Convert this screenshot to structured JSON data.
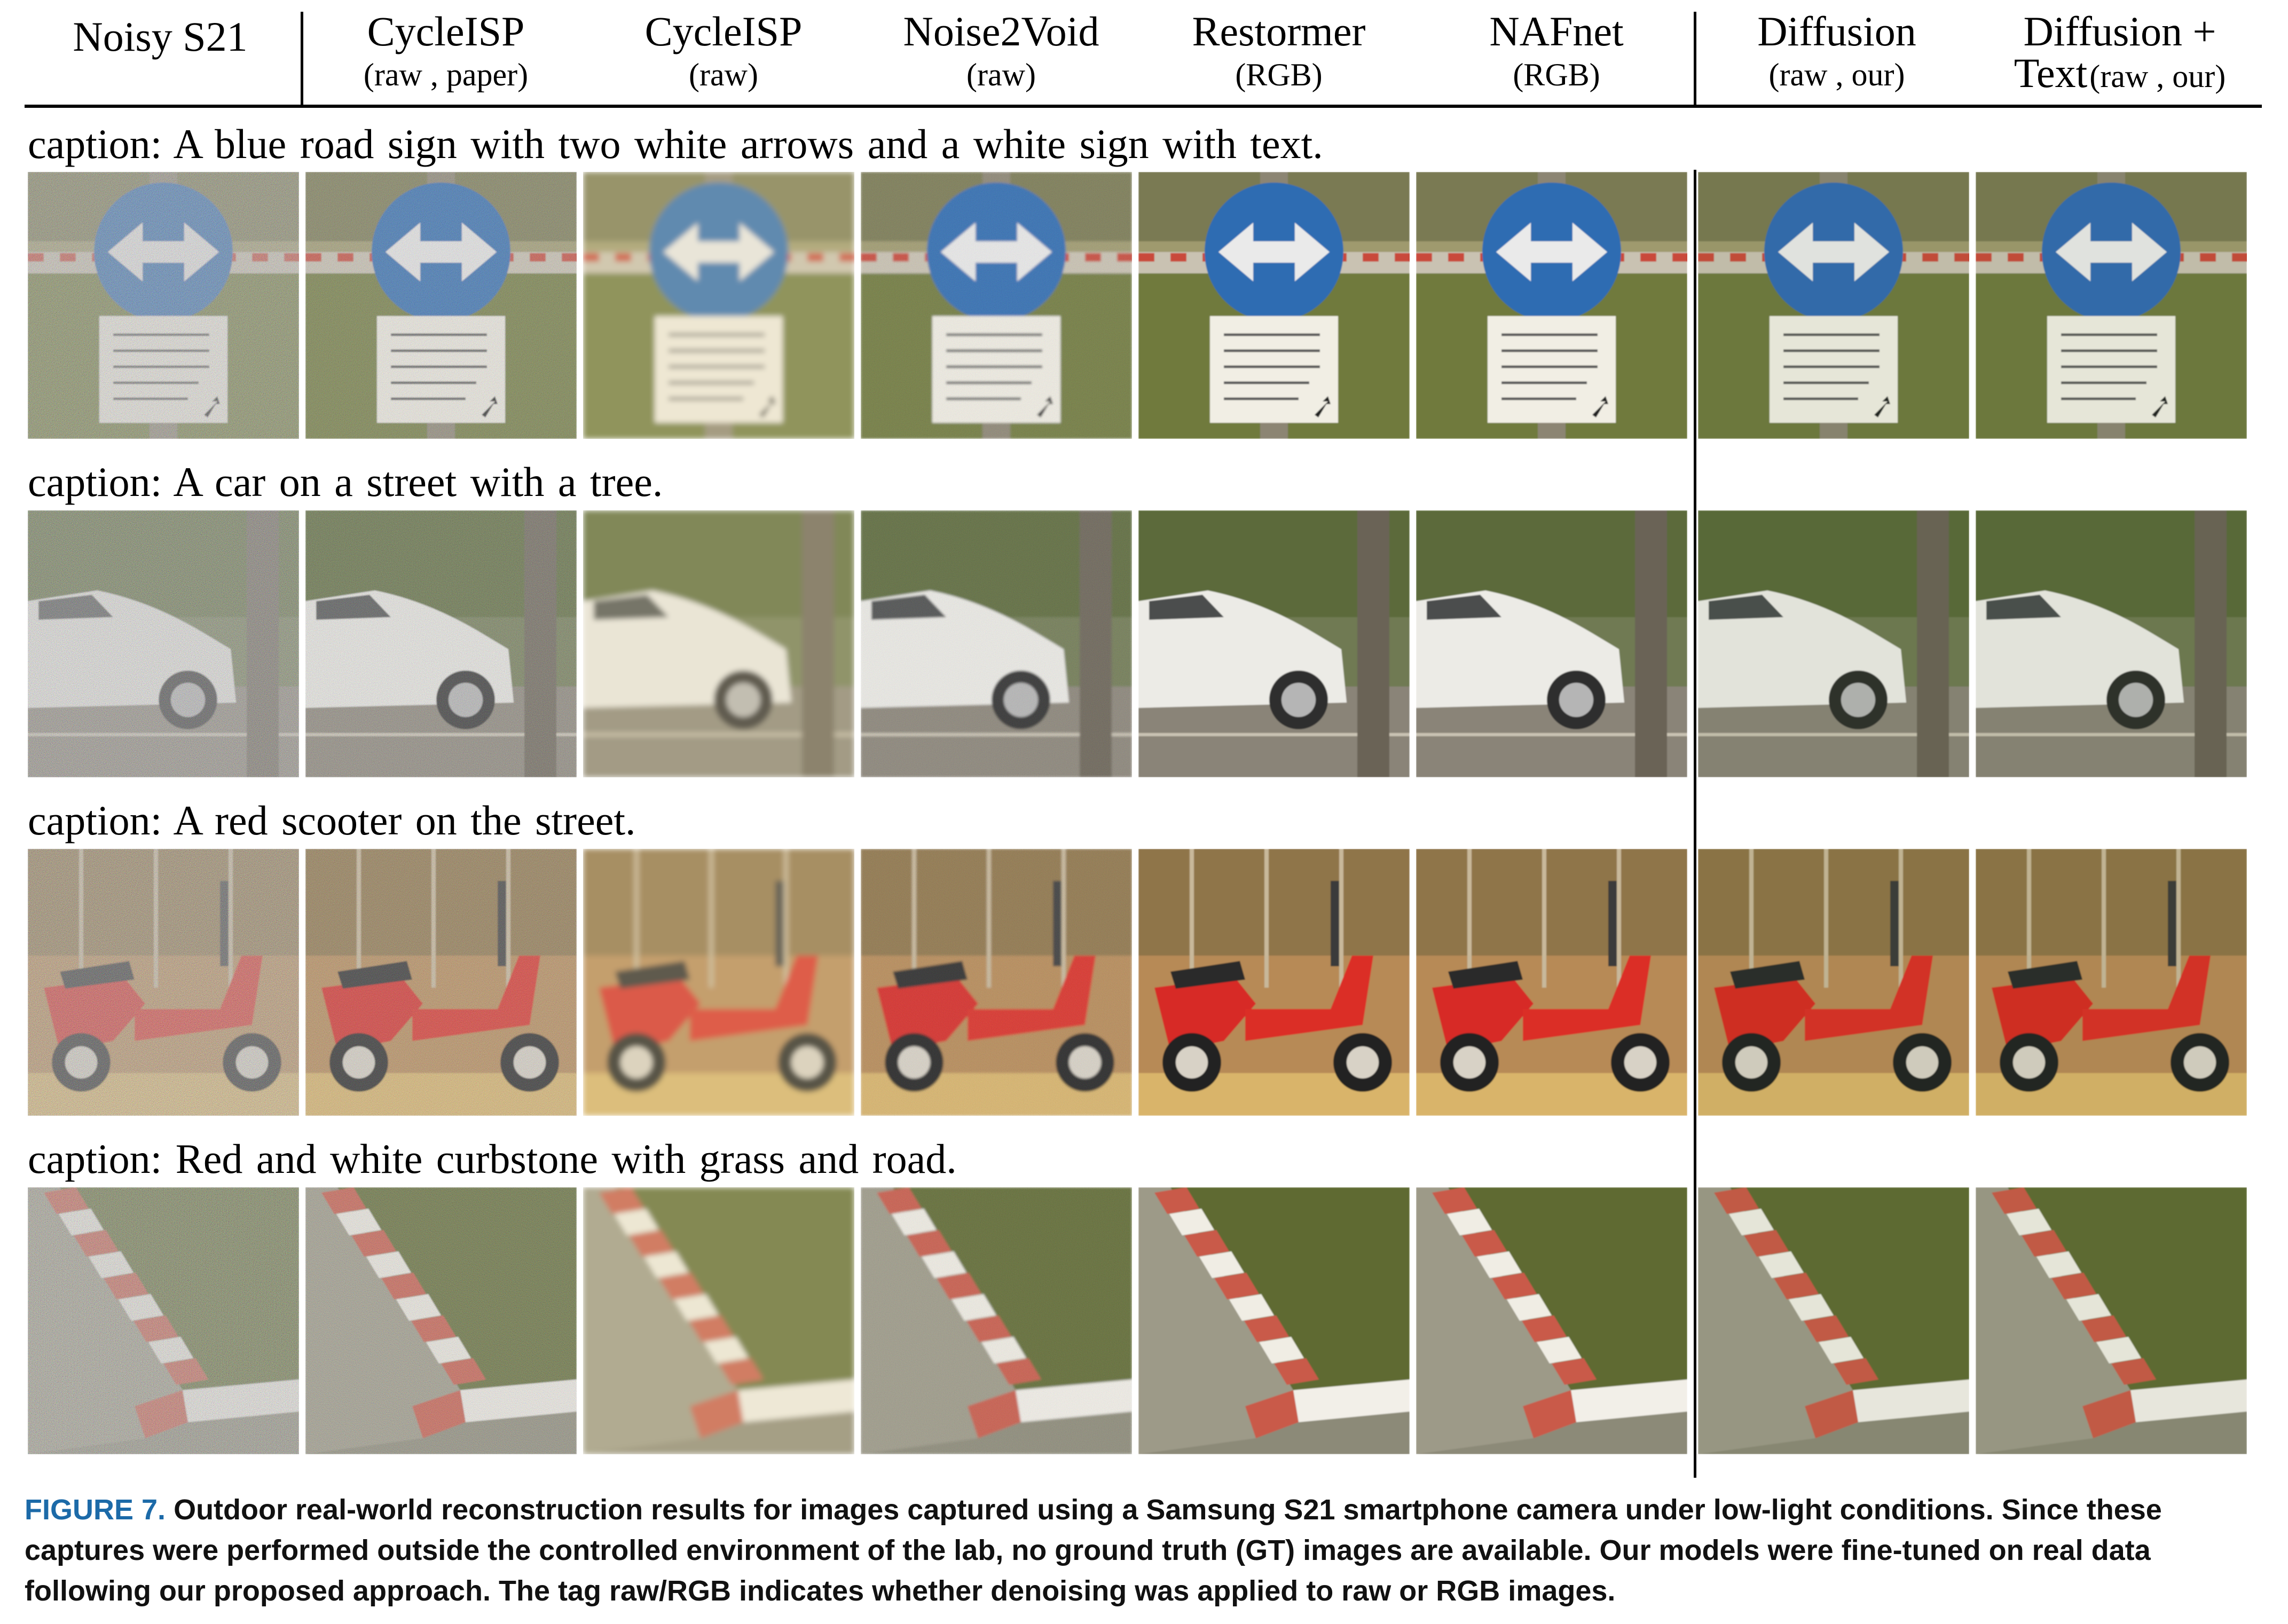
{
  "columns": [
    {
      "name": "Noisy S21",
      "tag": ""
    },
    {
      "name": "CycleISP",
      "tag": "(raw , paper)"
    },
    {
      "name": "CycleISP",
      "tag": "(raw)"
    },
    {
      "name": "Noise2Void",
      "tag": "(raw)"
    },
    {
      "name": "Restormer",
      "tag": "(RGB)"
    },
    {
      "name": "NAFnet",
      "tag": "(RGB)"
    },
    {
      "name": "Diffusion",
      "tag": "(raw , our)"
    },
    {
      "name_line1": "Diffusion +",
      "name_line2": "Text",
      "tag": "(raw , our)"
    }
  ],
  "rows": [
    {
      "caption": "caption: A blue road sign with two white arrows and a white sign with text.",
      "scene": "road-sign"
    },
    {
      "caption": "caption: A car on a street with a tree.",
      "scene": "car"
    },
    {
      "caption": "caption: A red scooter on the street.",
      "scene": "scooter"
    },
    {
      "caption": "caption: Red and white curbstone with grass and road.",
      "scene": "curbstone"
    }
  ],
  "figure": {
    "label": "FIGURE 7.",
    "text": "Outdoor real-world reconstruction results for images captured using a Samsung S21 smartphone camera under low-light conditions. Since these captures were performed outside the controlled environment of the lab, no ground truth (GT) images are available. Our models were fine-tuned on real data following our proposed approach. The tag raw/RGB indicates whether denoising was applied to raw or RGB images."
  },
  "colors": {
    "figure_label": "#1c6aa8"
  }
}
